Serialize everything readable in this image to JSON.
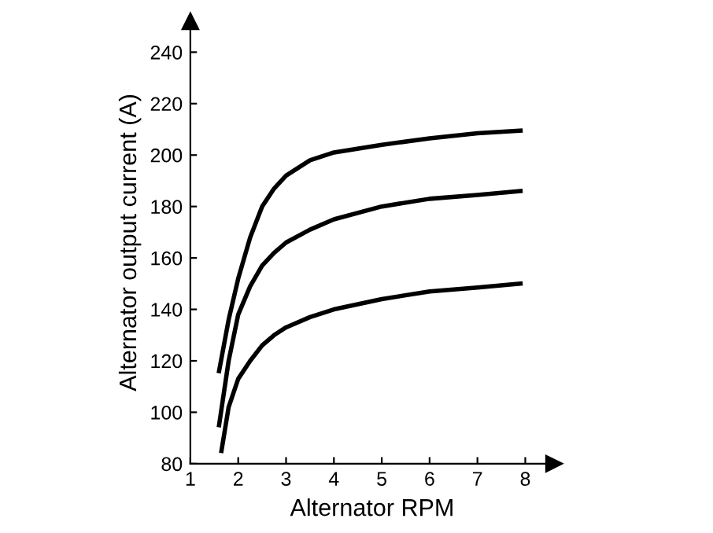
{
  "chart_data": {
    "type": "line",
    "xlabel": "Alternator RPM",
    "ylabel": "Alternator output current (A)",
    "xlim": [
      1,
      8.6
    ],
    "ylim": [
      80,
      252
    ],
    "xticks": [
      1,
      2,
      3,
      4,
      5,
      6,
      7,
      8
    ],
    "yticks": [
      80,
      100,
      120,
      140,
      160,
      180,
      200,
      220,
      240
    ],
    "grid": false,
    "marker": "none",
    "line_style": "solid",
    "series": [
      {
        "color": "#000000",
        "x": [
          1.6,
          1.8,
          2,
          2.25,
          2.5,
          2.75,
          3,
          3.5,
          4,
          5,
          6,
          7,
          7.9
        ],
        "values": [
          116,
          136,
          152,
          168,
          180,
          187,
          192,
          198,
          201,
          204,
          206.5,
          208.5,
          209.5
        ]
      },
      {
        "color": "#000000",
        "x": [
          1.6,
          1.8,
          2,
          2.25,
          2.5,
          2.75,
          3,
          3.5,
          4,
          5,
          6,
          7,
          7.9
        ],
        "values": [
          95,
          120,
          138,
          149,
          157,
          162,
          166,
          171,
          175,
          180,
          183,
          184.5,
          186
        ]
      },
      {
        "color": "#000000",
        "x": [
          1.65,
          1.8,
          2,
          2.25,
          2.5,
          2.75,
          3,
          3.5,
          4,
          5,
          6,
          7,
          7.9
        ],
        "values": [
          85,
          102,
          113,
          120,
          126,
          130,
          133,
          137,
          140,
          144,
          147,
          148.5,
          150
        ]
      }
    ]
  }
}
